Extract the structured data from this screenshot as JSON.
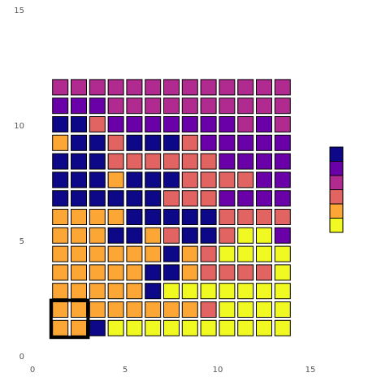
{
  "axes": {
    "x_ticks": [
      "0",
      "5",
      "10",
      "15"
    ],
    "y_ticks": [
      "0",
      "5",
      "10",
      "15"
    ],
    "x_range": [
      0,
      15
    ],
    "y_range": [
      0,
      15
    ]
  },
  "palette": {
    "0": "#f0f921",
    "1": "#fca636",
    "2": "#e16462",
    "3": "#b12a90",
    "4": "#6a00a8",
    "5": "#0d0887"
  },
  "legend_order": [
    "5",
    "4",
    "3",
    "2",
    "1",
    "0"
  ],
  "grid": {
    "rows_top_to_bottom": [
      "3333333333333",
      "4443333333333",
      "5524444444343",
      "1552555244444",
      "5552222224444",
      "5551555222244",
      "5555552224444",
      "1111555552222",
      "1115512552004",
      "1111115120000",
      "1111155122220",
      "1111150000000",
      "1111111120000",
      "1150000000000"
    ]
  },
  "selection": {
    "col": 1,
    "row_from_bottom": 1,
    "width": 2,
    "height": 2
  }
}
